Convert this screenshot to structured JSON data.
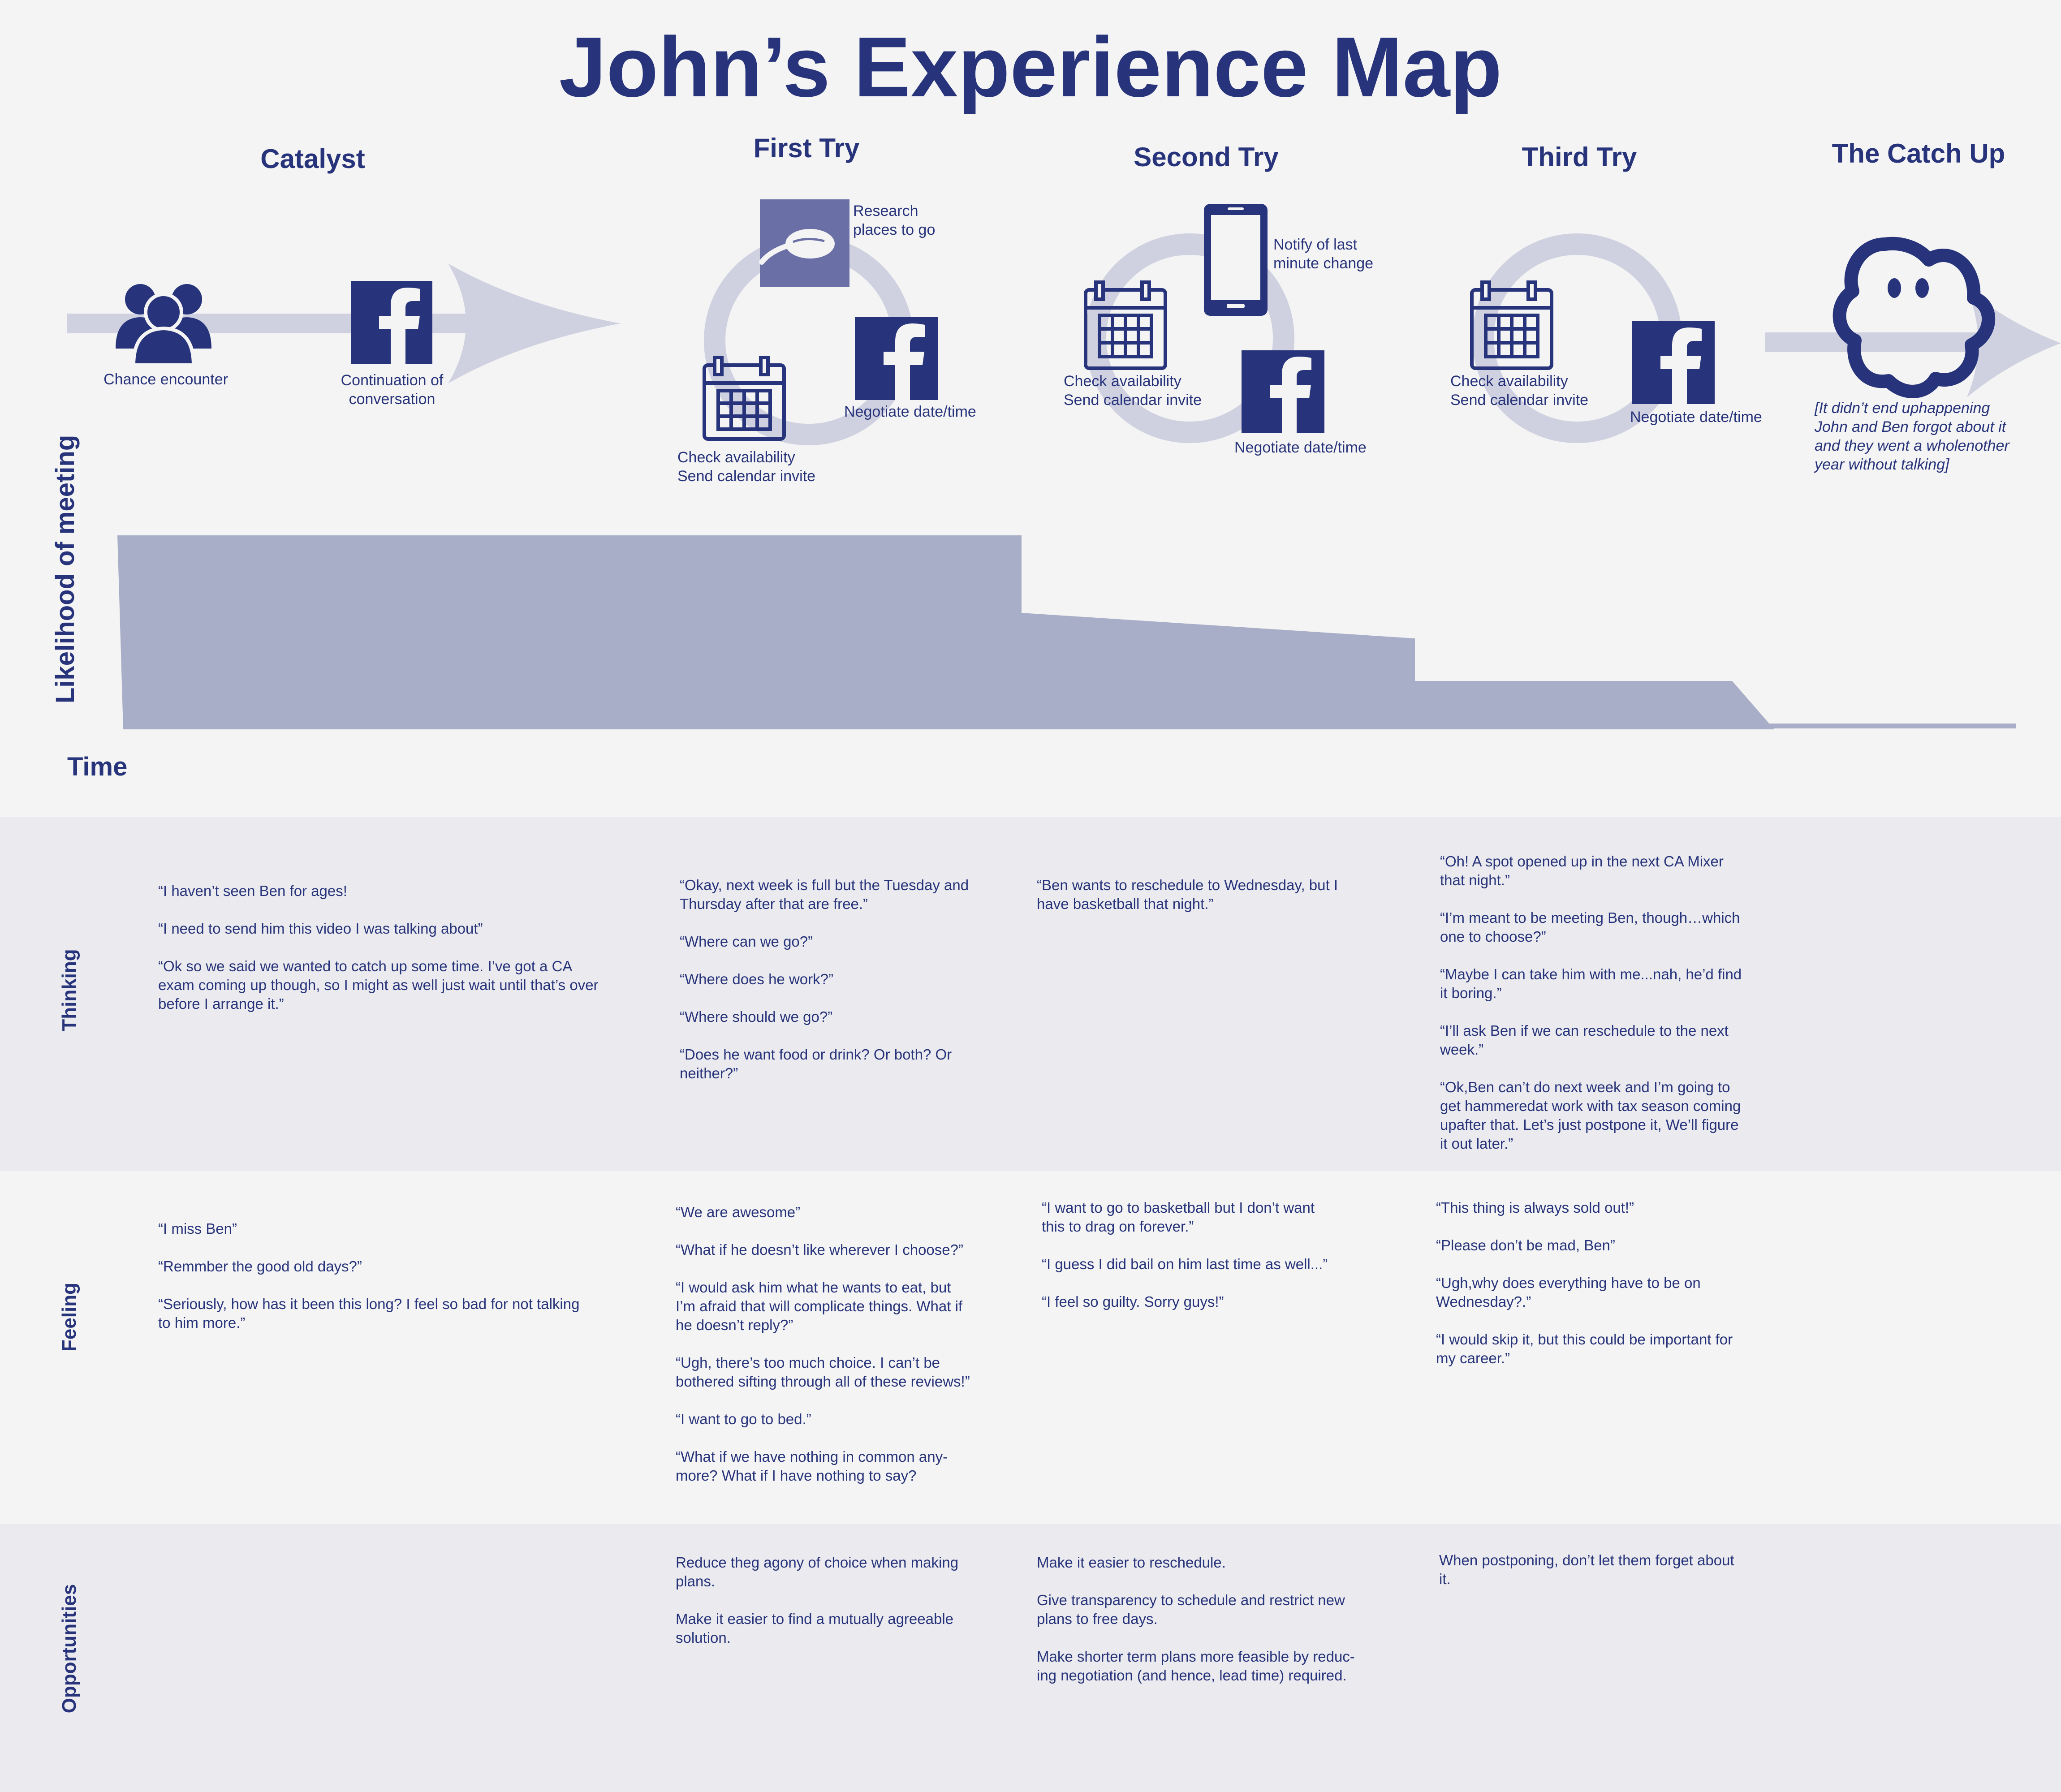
{
  "title": "John’s Experience Map",
  "colors": {
    "accent": "#27337a",
    "light": "#cfd1e0",
    "area": "#a9aec8",
    "band": "#ebebef",
    "bg": "#f4f4f4"
  },
  "stages": [
    {
      "name": "Catalyst"
    },
    {
      "name": "First Try"
    },
    {
      "name": "Second Try"
    },
    {
      "name": "Third Try"
    },
    {
      "name": "The Catch Up"
    }
  ],
  "icon_labels": {
    "chance": "Chance encounter",
    "continuation": "Continuation of\nconversation",
    "research": "Research\nplaces to go",
    "check1": "Check availability\n     Send calendar invite",
    "negotiate1": "Negotiate date/time",
    "notify": "Notify of last\nminute change",
    "check2": "Check availability\n     Send calendar invite",
    "negotiate2": "Negotiate date/time",
    "check3": "Check availability\n     Send calendar invite",
    "negotiate3": "Negotiate date/time",
    "catchup_note": "[It didn’t end uphappening\nJohn and Ben forgot about it\nand they went a wholenother\nyear without talking]"
  },
  "icons": [
    "people-icon",
    "facebook-icon",
    "spoon-icon",
    "calendar-icon",
    "phone-icon",
    "ghost-icon",
    "arrow-icon",
    "loop-icon"
  ],
  "chart": {
    "ylabel": "Likelihood of meeting",
    "xlabel": "Time"
  },
  "rows": {
    "thinking": {
      "label": "Thinking",
      "cols": [
        [
          "“I haven’t seen Ben for ages!",
          "“I need to send him this video I was talking about”",
          "“Ok so we said we wanted to catch up some time. I’ve got a CA\nexam coming up though, so I might as well just wait until that’s over\nbefore I arrange it.”"
        ],
        [
          "“Okay, next week is full but the Tuesday and\nThursday after that are free.”",
          "“Where can we go?”",
          "“Where does he work?”",
          "“Where should we go?”",
          "“Does he want food or drink? Or both? Or\nneither?”"
        ],
        [
          "“Ben wants to reschedule to Wednesday, but I\nhave basketball that night.”"
        ],
        [
          "“Oh! A spot opened up in the next CA Mixer\nthat night.”",
          "“I’m meant to be meeting Ben, though…which\none to choose?”",
          "“Maybe I can take him with me...nah, he’d find\nit boring.”",
          " “I’ll ask Ben if we can reschedule to the next\nweek.”",
          "“Ok,Ben can’t do next week and I’m going to\nget hammeredat work with tax season coming\nupafter that. Let’s just postpone it, We’ll figure\nit out later.”"
        ]
      ]
    },
    "feeling": {
      "label": "Feeling",
      "cols": [
        [
          "“I miss Ben”",
          "“Remmber the good old days?”",
          "“Seriously, how has it been this long? I feel so bad for not talking\nto him more.”"
        ],
        [
          "“We are awesome”",
          "“What if he doesn’t like wherever I choose?”",
          "“I would ask him what he wants to eat, but\nI’m afraid that will complicate things. What if\nhe doesn’t reply?”",
          "“Ugh, there’s too much choice. I can’t be\nbothered sifting through all of these reviews!”",
          "“I want to go to bed.”",
          "“What if we have nothing in common any-\nmore? What if I have nothing to say?"
        ],
        [
          "“I want to go to basketball but I don’t want\nthis to drag on forever.”",
          "“I guess I did bail on him last time as well...”",
          "“I feel so guilty. Sorry guys!”"
        ],
        [
          "“This thing is always sold out!”",
          "“Please don’t be mad, Ben”",
          "“Ugh,why does everything have to be on\nWednesday?.”",
          "“I would skip it, but this could be important for\nmy career.”"
        ]
      ]
    },
    "opportunities": {
      "label": "Opportunities",
      "cols": [
        [],
        [
          "Reduce theg agony of choice when making\nplans.",
          "Make it easier to find a mutually agreeable\nsolution."
        ],
        [
          "Make it easier to reschedule.",
          "Give transparency to schedule and restrict new\nplans to free days.",
          "Make shorter term plans more feasible by reduc-\ning negotiation (and hence, lead time) required."
        ],
        [
          "When postponing, don’t let them forget about\nit."
        ]
      ]
    }
  }
}
